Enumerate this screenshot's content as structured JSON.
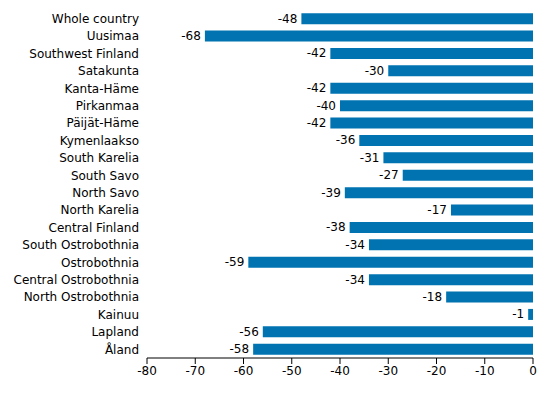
{
  "chart_data": {
    "type": "bar",
    "orientation": "horizontal",
    "categories": [
      "Whole country",
      "Uusimaa",
      "Southwest Finland",
      "Satakunta",
      "Kanta-Häme",
      "Pirkanmaa",
      "Päijät-Häme",
      "Kymenlaakso",
      "South Karelia",
      "South Savo",
      "North Savo",
      "North Karelia",
      "Central Finland",
      "South Ostrobothnia",
      "Ostrobothnia",
      "Central Ostrobothnia",
      "North Ostrobothnia",
      "Kainuu",
      "Lapland",
      "Åland"
    ],
    "values": [
      -48,
      -68,
      -42,
      -30,
      -42,
      -40,
      -42,
      -36,
      -31,
      -27,
      -39,
      -17,
      -38,
      -34,
      -59,
      -34,
      -18,
      -1,
      -56,
      -58
    ],
    "color": "#0073b0",
    "xlim": [
      -80,
      0
    ],
    "xticks": [
      -80,
      -70,
      -60,
      -50,
      -40,
      -30,
      -20,
      -10,
      0
    ],
    "data_labels": true
  }
}
